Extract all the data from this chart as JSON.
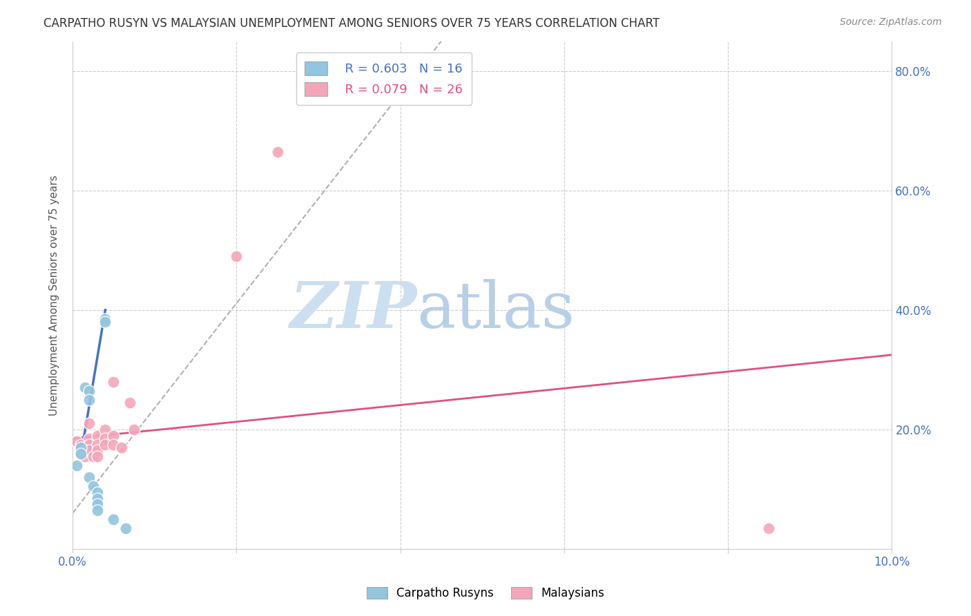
{
  "title": "CARPATHO RUSYN VS MALAYSIAN UNEMPLOYMENT AMONG SENIORS OVER 75 YEARS CORRELATION CHART",
  "source": "Source: ZipAtlas.com",
  "ylabel": "Unemployment Among Seniors over 75 years",
  "xlim": [
    0.0,
    0.1
  ],
  "ylim": [
    0.0,
    0.85
  ],
  "x_ticks": [
    0.0,
    0.02,
    0.04,
    0.06,
    0.08,
    0.1
  ],
  "x_tick_labels": [
    "0.0%",
    "",
    "",
    "",
    "",
    "10.0%"
  ],
  "y_ticks": [
    0.0,
    0.2,
    0.4,
    0.6,
    0.8
  ],
  "right_y_tick_labels": [
    "",
    "20.0%",
    "40.0%",
    "60.0%",
    "80.0%"
  ],
  "legend_r1": "R = 0.603",
  "legend_n1": "N = 16",
  "legend_r2": "R = 0.079",
  "legend_n2": "N = 26",
  "blue_color": "#92c5de",
  "pink_color": "#f4a6b8",
  "blue_line_color": "#4472c4",
  "pink_line_color": "#e05080",
  "dashed_line_color": "#b0b0b0",
  "watermark_zip_color": "#ccdff0",
  "watermark_atlas_color": "#b8cfe8",
  "background_color": "#ffffff",
  "carpatho_x": [
    0.0005,
    0.001,
    0.001,
    0.0015,
    0.002,
    0.002,
    0.002,
    0.0025,
    0.003,
    0.003,
    0.003,
    0.003,
    0.004,
    0.004,
    0.005,
    0.0065
  ],
  "carpatho_y": [
    0.14,
    0.17,
    0.16,
    0.27,
    0.265,
    0.25,
    0.12,
    0.105,
    0.095,
    0.085,
    0.075,
    0.065,
    0.385,
    0.38,
    0.05,
    0.035
  ],
  "malaysian_x": [
    0.0005,
    0.001,
    0.001,
    0.0015,
    0.0015,
    0.002,
    0.002,
    0.002,
    0.002,
    0.0025,
    0.003,
    0.003,
    0.003,
    0.003,
    0.004,
    0.004,
    0.004,
    0.005,
    0.005,
    0.005,
    0.006,
    0.007,
    0.0075,
    0.02,
    0.025,
    0.085
  ],
  "malaysian_y": [
    0.18,
    0.175,
    0.16,
    0.165,
    0.155,
    0.21,
    0.185,
    0.175,
    0.165,
    0.155,
    0.19,
    0.175,
    0.165,
    0.155,
    0.2,
    0.185,
    0.175,
    0.19,
    0.175,
    0.28,
    0.17,
    0.245,
    0.2,
    0.49,
    0.665,
    0.035
  ],
  "blue_trend_x": [
    0.001,
    0.004
  ],
  "blue_trend_y": [
    0.155,
    0.4
  ],
  "pink_trend_x": [
    0.0,
    0.1
  ],
  "pink_trend_y": [
    0.185,
    0.325
  ],
  "dashed_trend_x": [
    0.0,
    0.045
  ],
  "dashed_trend_y": [
    0.06,
    0.85
  ],
  "bottom_legend_labels": [
    "Carpatho Rusyns",
    "Malaysians"
  ]
}
